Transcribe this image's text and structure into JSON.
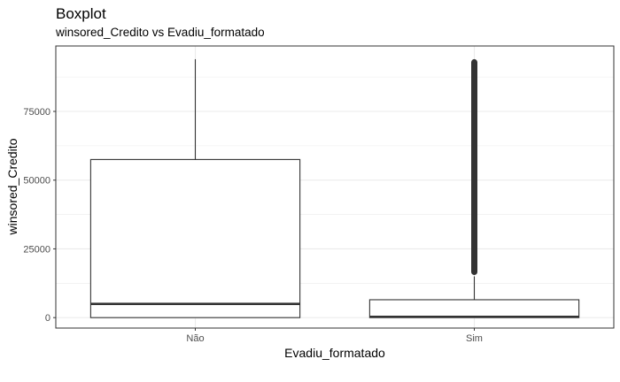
{
  "chart_data": {
    "type": "boxplot",
    "title": "Boxplot",
    "subtitle": "winsored_Credito vs Evadiu_formatado",
    "xlabel": "Evadiu_formatado",
    "ylabel": "winsored_Credito",
    "ylim": [
      -3800,
      98800
    ],
    "y_ticks": [
      0,
      25000,
      50000,
      75000
    ],
    "y_tick_labels": [
      "0",
      "25000",
      "50000",
      "75000"
    ],
    "grid": true,
    "categories": [
      "Não",
      "Sim"
    ],
    "boxes": [
      {
        "category": "Não",
        "whisker_low": 0,
        "q1": 0,
        "median": 5000,
        "q3": 57500,
        "whisker_high": 94000,
        "outliers_range": null
      },
      {
        "category": "Sim",
        "whisker_low": 0,
        "q1": 0,
        "median": 300,
        "q3": 6500,
        "whisker_high": 15000,
        "outliers_range": [
          15500,
          94000
        ]
      }
    ],
    "colors": {
      "panel_border": "#333333",
      "grid": "#ebebeb",
      "box_line": "#333333",
      "outlier": "#333333"
    }
  }
}
